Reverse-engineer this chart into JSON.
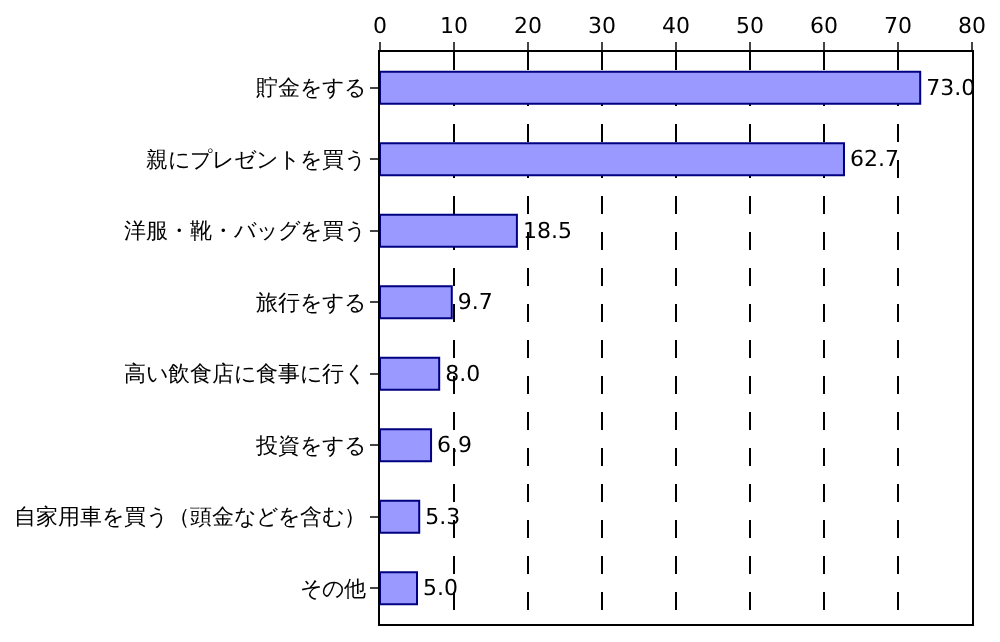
{
  "chart_data": {
    "type": "bar",
    "orientation": "horizontal",
    "categories": [
      "貯金をする",
      "親にプレゼントを買う",
      "洋服・靴・バッグを買う",
      "旅行をする",
      "高い飲食店に食事に行く",
      "投資をする",
      "自家用車を買う（頭金などを含む）",
      "その他"
    ],
    "values": [
      73.0,
      62.7,
      18.5,
      9.7,
      8.0,
      6.9,
      5.3,
      5.0
    ],
    "value_labels": [
      "73.0",
      "62.7",
      "18.5",
      "9.7",
      "8.0",
      "6.9",
      "5.3",
      "5.0"
    ],
    "color": "#9999ff",
    "xlim": [
      0,
      80
    ],
    "xticks": [
      0,
      10,
      20,
      30,
      40,
      50,
      60,
      70,
      80
    ],
    "grid": "x",
    "legend": false
  }
}
